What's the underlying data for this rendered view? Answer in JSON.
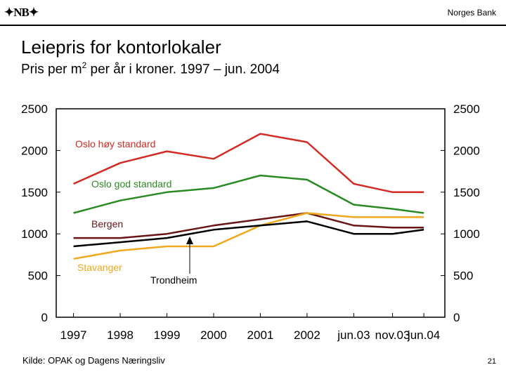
{
  "header": {
    "logo_text": "NB",
    "bank_name": "Norges Bank"
  },
  "title": "Leiepris for kontorlokaler",
  "subtitle": {
    "before": "Pris per m",
    "sup": "2",
    "after": " per år i kroner. 1997 – jun. 2004"
  },
  "footer": {
    "source": "Kilde: OPAK og Dagens Næringsliv",
    "page_number": "21"
  },
  "colors": {
    "oslo_hoy": "#d42a24",
    "oslo_god": "#2a8a22",
    "bergen": "#6b1616",
    "stavanger": "#f0a81e",
    "trondheim": "#000000"
  },
  "chart_data": {
    "type": "line",
    "title": "Leiepris for kontorlokaler",
    "x_labels": [
      "1997",
      "1998",
      "1999",
      "2000",
      "2001",
      "2002",
      "jun.03",
      "nov.03",
      "jun.04"
    ],
    "ylim": [
      0,
      2500
    ],
    "yticks": [
      0,
      500,
      1000,
      1500,
      2000,
      2500
    ],
    "grid": false,
    "series": [
      {
        "name": "Oslo høy standard",
        "color": "#d42a24",
        "points": [
          [
            1997,
            1600
          ],
          [
            1998,
            1850
          ],
          [
            1999,
            1990
          ],
          [
            2000,
            1900
          ],
          [
            2001,
            2200
          ],
          [
            2002,
            2100
          ],
          [
            2003,
            1600
          ],
          [
            2003.83,
            1500
          ],
          [
            2004.5,
            1500
          ]
        ]
      },
      {
        "name": "Oslo god standard",
        "color": "#2a8a22",
        "points": [
          [
            1997,
            1250
          ],
          [
            1998,
            1400
          ],
          [
            1999,
            1500
          ],
          [
            2000,
            1550
          ],
          [
            2001,
            1700
          ],
          [
            2002,
            1650
          ],
          [
            2003,
            1350
          ],
          [
            2003.83,
            1300
          ],
          [
            2004.5,
            1250
          ]
        ]
      },
      {
        "name": "Bergen",
        "color": "#6b1616",
        "points": [
          [
            1997,
            950
          ],
          [
            1998,
            950
          ],
          [
            1999,
            1000
          ],
          [
            2000,
            1100
          ],
          [
            2001,
            1175
          ],
          [
            2002,
            1250
          ],
          [
            2003,
            1100
          ],
          [
            2003.83,
            1075
          ],
          [
            2004.5,
            1075
          ]
        ]
      },
      {
        "name": "Stavanger",
        "color": "#f0a81e",
        "points": [
          [
            1997,
            700
          ],
          [
            1998,
            800
          ],
          [
            1999,
            850
          ],
          [
            2000,
            850
          ],
          [
            2001,
            1100
          ],
          [
            2002,
            1250
          ],
          [
            2003,
            1200
          ],
          [
            2003.83,
            1200
          ],
          [
            2004.5,
            1200
          ]
        ]
      },
      {
        "name": "Trondheim",
        "color": "#000000",
        "points": [
          [
            1997,
            850
          ],
          [
            1998,
            900
          ],
          [
            1999,
            950
          ],
          [
            2000,
            1050
          ],
          [
            2001,
            1100
          ],
          [
            2002,
            1150
          ],
          [
            2003,
            1000
          ],
          [
            2003.83,
            1000
          ],
          [
            2004.5,
            1050
          ]
        ]
      }
    ]
  }
}
